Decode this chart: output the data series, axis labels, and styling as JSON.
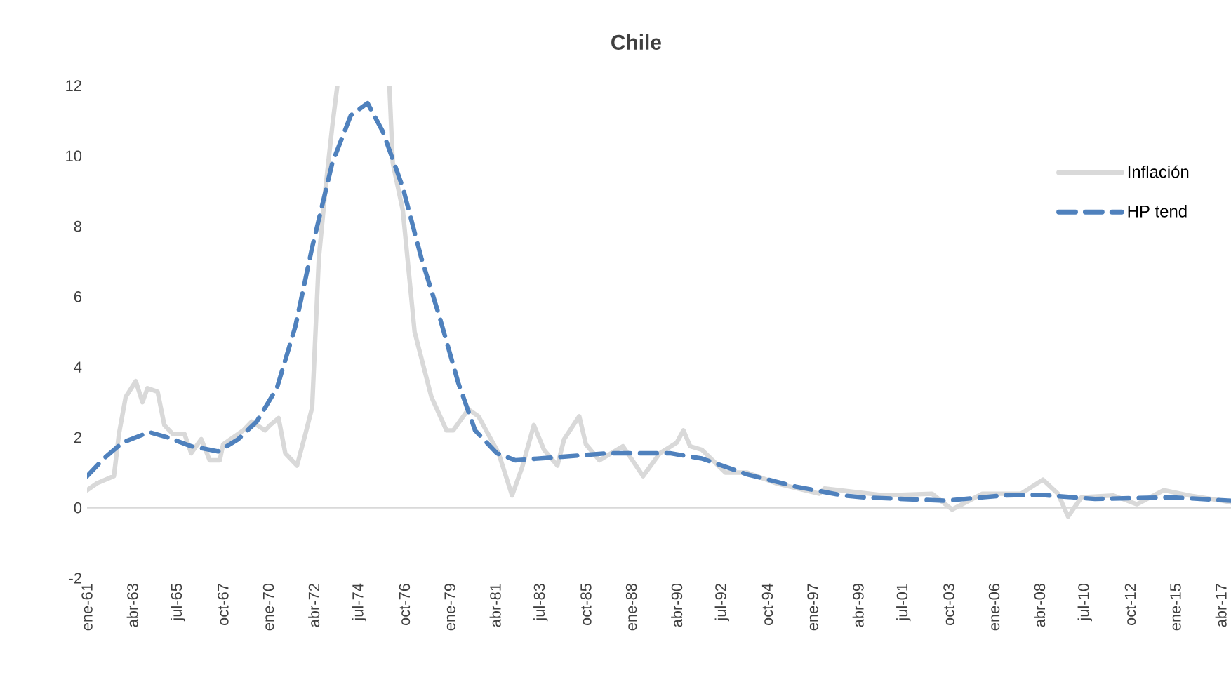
{
  "chart_data": {
    "type": "line",
    "title": "Chile",
    "xlim": [
      "1961-01",
      "2017-10"
    ],
    "ylim": [
      -2,
      12
    ],
    "yticks": [
      -2,
      0,
      2,
      4,
      6,
      8,
      10,
      12
    ],
    "xticks": [
      {
        "value": "1961-01",
        "label": "ene-61"
      },
      {
        "value": "1963-04",
        "label": "abr-63"
      },
      {
        "value": "1965-07",
        "label": "jul-65"
      },
      {
        "value": "1967-10",
        "label": "oct-67"
      },
      {
        "value": "1970-01",
        "label": "ene-70"
      },
      {
        "value": "1972-04",
        "label": "abr-72"
      },
      {
        "value": "1974-07",
        "label": "jul-74"
      },
      {
        "value": "1976-10",
        "label": "oct-76"
      },
      {
        "value": "1979-01",
        "label": "ene-79"
      },
      {
        "value": "1981-04",
        "label": "abr-81"
      },
      {
        "value": "1983-07",
        "label": "jul-83"
      },
      {
        "value": "1985-10",
        "label": "oct-85"
      },
      {
        "value": "1988-01",
        "label": "ene-88"
      },
      {
        "value": "1990-04",
        "label": "abr-90"
      },
      {
        "value": "1992-07",
        "label": "jul-92"
      },
      {
        "value": "1994-10",
        "label": "oct-94"
      },
      {
        "value": "1997-01",
        "label": "ene-97"
      },
      {
        "value": "1999-04",
        "label": "abr-99"
      },
      {
        "value": "2001-07",
        "label": "jul-01"
      },
      {
        "value": "2003-10",
        "label": "oct-03"
      },
      {
        "value": "2006-01",
        "label": "ene-06"
      },
      {
        "value": "2008-04",
        "label": "abr-08"
      },
      {
        "value": "2010-07",
        "label": "jul-10"
      },
      {
        "value": "2012-10",
        "label": "oct-12"
      },
      {
        "value": "2015-01",
        "label": "ene-15"
      },
      {
        "value": "2017-04",
        "label": "abr-17"
      }
    ],
    "legend": "top right",
    "series": [
      {
        "name": "Inflación",
        "color": "#d9d9d9",
        "line_style": "solid",
        "x": [
          "1961-01",
          "1961-07",
          "1962-05",
          "1962-08",
          "1962-12",
          "1963-06",
          "1963-10",
          "1964-01",
          "1964-07",
          "1964-11",
          "1965-04",
          "1965-11",
          "1966-03",
          "1966-09",
          "1967-02",
          "1967-08",
          "1967-10",
          "1968-10",
          "1969-03",
          "1969-11",
          "1970-02",
          "1970-07",
          "1970-11",
          "1971-06",
          "1971-11",
          "1972-03",
          "1972-07",
          "1972-11",
          "1973-03",
          "1973-06",
          "1974-07",
          "1976-01",
          "1976-03",
          "1976-09",
          "1977-04",
          "1978-02",
          "1978-11",
          "1979-03",
          "1979-12",
          "1980-06",
          "1981-06",
          "1982-02",
          "1982-08",
          "1983-03",
          "1983-09",
          "1984-05",
          "1984-09",
          "1985-06",
          "1985-10",
          "1986-06",
          "1987-08",
          "1988-08",
          "1989-06",
          "1990-04",
          "1990-08",
          "1990-12",
          "1991-07",
          "1992-09",
          "1993-10",
          "1995-03",
          "1997-05",
          "1997-08",
          "2000-08",
          "2002-12",
          "2003-12",
          "2005-06",
          "2007-05",
          "2008-06",
          "2009-03",
          "2009-09",
          "2010-05",
          "2011-12",
          "2013-02",
          "2014-06",
          "2015-09",
          "2017-05",
          "2017-10"
        ],
        "values": [
          0.5,
          0.7,
          0.9,
          2.1,
          3.15,
          3.6,
          3.0,
          3.4,
          3.3,
          2.35,
          2.1,
          2.1,
          1.55,
          1.95,
          1.35,
          1.35,
          1.8,
          2.2,
          2.45,
          2.2,
          2.35,
          2.55,
          1.55,
          1.2,
          2.1,
          2.85,
          7.1,
          9.1,
          10.85,
          12,
          null,
          12,
          9.8,
          8.45,
          5.0,
          3.15,
          2.2,
          2.2,
          2.8,
          2.6,
          1.55,
          0.35,
          1.15,
          2.35,
          1.65,
          1.2,
          1.95,
          2.6,
          1.8,
          1.35,
          1.75,
          0.9,
          1.55,
          1.85,
          2.2,
          1.75,
          1.65,
          1.0,
          1.0,
          0.7,
          0.4,
          0.55,
          0.35,
          0.4,
          -0.05,
          0.4,
          0.4,
          0.8,
          0.4,
          -0.25,
          0.3,
          0.35,
          0.1,
          0.5,
          0.35,
          0.2,
          0.15
        ]
      },
      {
        "name": "HP tend",
        "color": "#4f81bd",
        "line_style": "dashed",
        "x": [
          "1961-01",
          "1961-11",
          "1962-10",
          "1964-02",
          "1965-01",
          "1966-03",
          "1967-07",
          "1968-07",
          "1969-06",
          "1970-06",
          "1971-05",
          "1972-03",
          "1973-03",
          "1974-02",
          "1974-12",
          "1975-09",
          "1976-09",
          "1977-08",
          "1978-07",
          "1979-06",
          "1980-04",
          "1981-05",
          "1982-04",
          "1984-08",
          "1986-11",
          "1989-12",
          "1991-07",
          "1993-10",
          "1996-03",
          "1998-07",
          "1999-06",
          "2003-08",
          "2006-06",
          "2008-04",
          "2011-01",
          "2014-10",
          "2017-10"
        ],
        "values": [
          0.9,
          1.4,
          1.85,
          2.15,
          2.0,
          1.75,
          1.6,
          1.95,
          2.45,
          3.4,
          5.15,
          7.4,
          9.8,
          11.15,
          11.5,
          10.7,
          9.1,
          7.1,
          5.4,
          3.55,
          2.2,
          1.55,
          1.35,
          1.45,
          1.55,
          1.55,
          1.4,
          0.95,
          0.6,
          0.35,
          0.3,
          0.2,
          0.35,
          0.37,
          0.25,
          0.3,
          0.2
        ]
      }
    ]
  }
}
